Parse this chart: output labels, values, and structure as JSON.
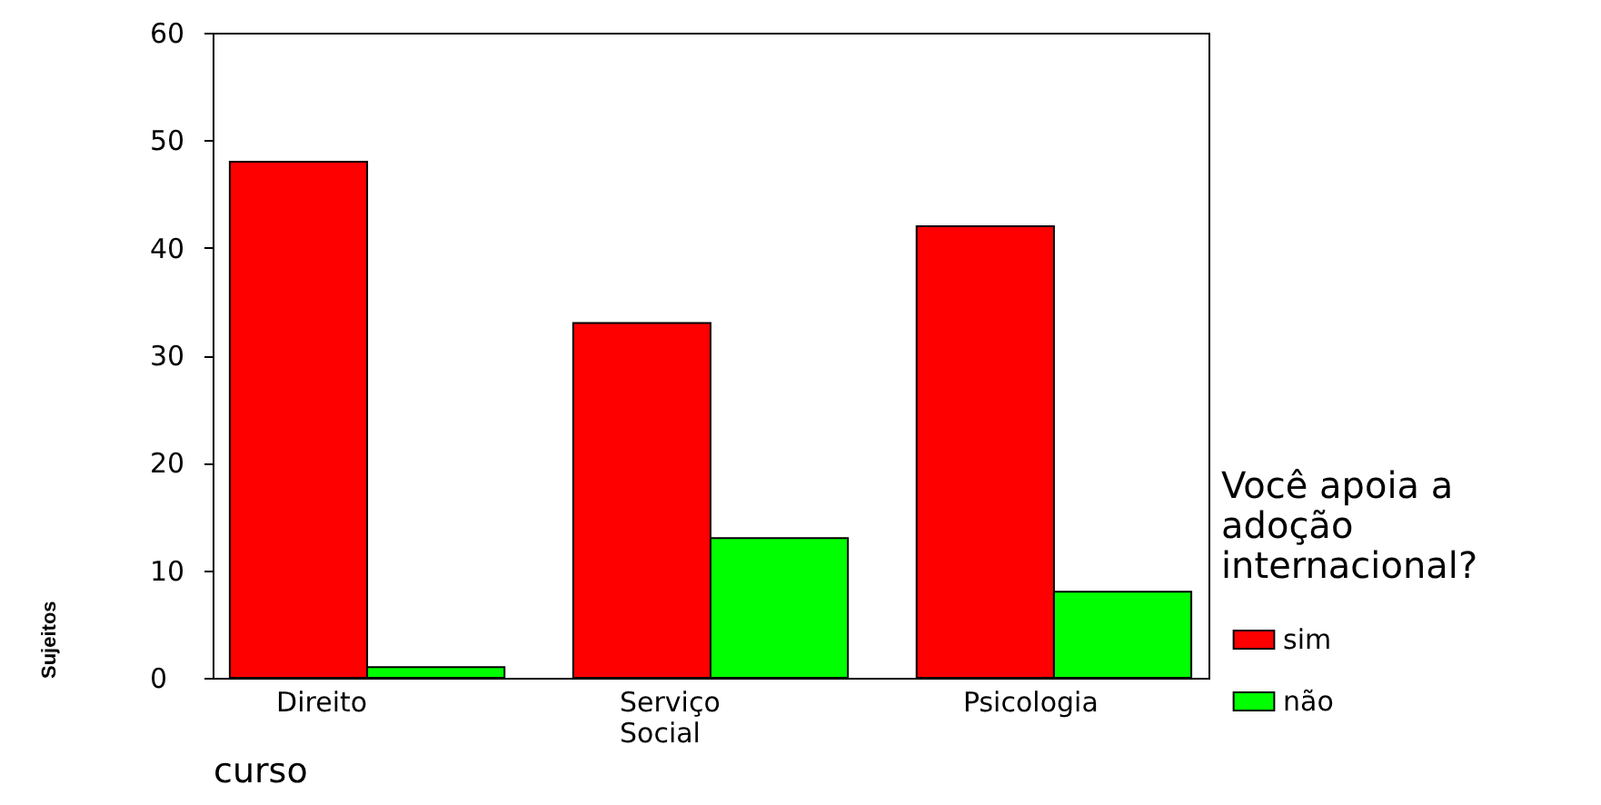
{
  "chart_data": {
    "type": "bar",
    "xlabel": "curso",
    "ylabel": "Sujeitos",
    "legend_title": "Você apoia a adoção internacional?",
    "legend": "right",
    "categories": [
      "Direito",
      "Serviço Social",
      "Psicologia"
    ],
    "series": [
      {
        "name": "sim",
        "color": "#ff0000",
        "values": [
          48,
          33,
          42
        ]
      },
      {
        "name": "não",
        "color": "#00ff00",
        "values": [
          1,
          13,
          8
        ]
      }
    ],
    "ylim": [
      0,
      60
    ],
    "yticks": [
      0,
      10,
      20,
      30,
      40,
      50,
      60
    ],
    "grid": false
  }
}
